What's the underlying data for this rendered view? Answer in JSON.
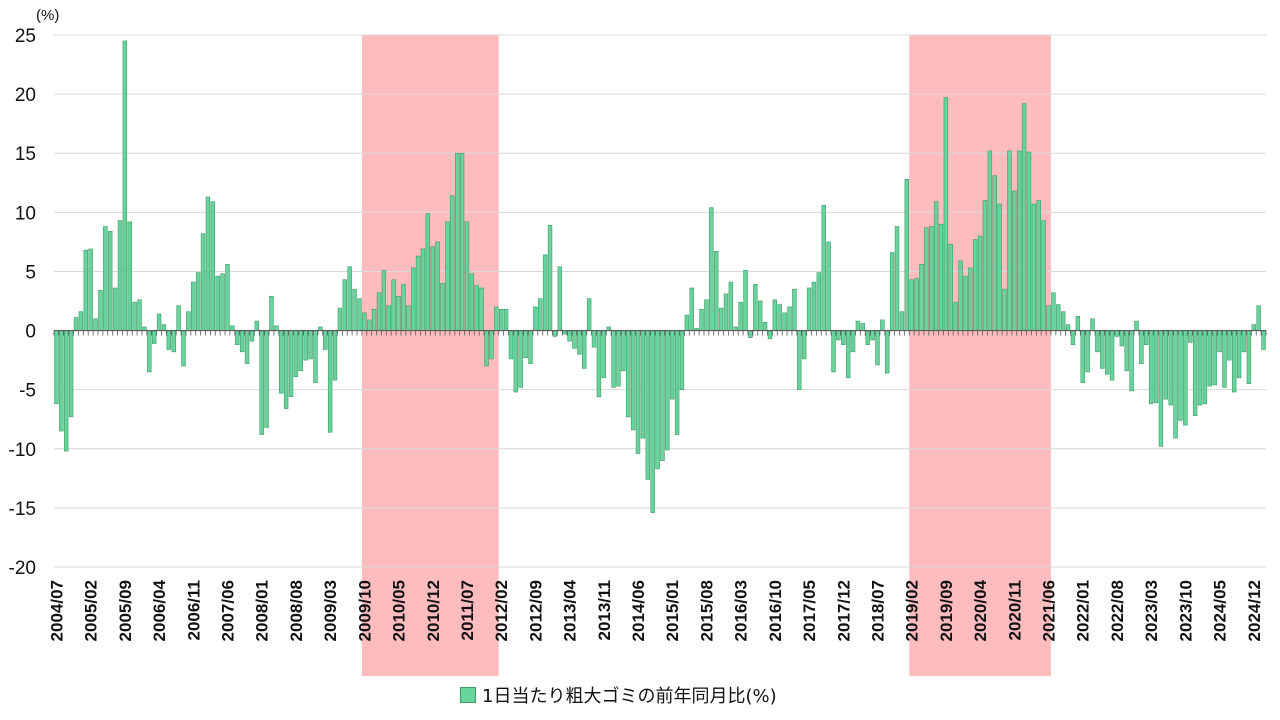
{
  "chart_data": {
    "type": "bar",
    "unit_label": "(%)",
    "colors": {
      "bar": "#69d39c",
      "bar_edge": "#3f9a6a",
      "highlight": "#ffbcbe",
      "grid": "#d9d9d9"
    },
    "ylim": [
      -20,
      25
    ],
    "y_ticks": [
      "25",
      "20",
      "15",
      "10",
      "5",
      "0",
      "-5",
      "-10",
      "-15",
      "-20"
    ],
    "x_tick_labels": [
      "2004/07",
      "2005/02",
      "2005/09",
      "2006/04",
      "2006/11",
      "2007/06",
      "2008/01",
      "2008/08",
      "2009/03",
      "2009/10",
      "2010/05",
      "2010/12",
      "2011/07",
      "2012/02",
      "2012/09",
      "2013/04",
      "2013/11",
      "2014/06",
      "2015/01",
      "2015/08",
      "2016/03",
      "2016/10",
      "2017/05",
      "2017/12",
      "2018/07",
      "2019/02",
      "2019/09",
      "2020/04",
      "2020/11",
      "2021/06",
      "2022/01",
      "2022/08",
      "2023/03",
      "2023/10",
      "2024/05",
      "2024/12"
    ],
    "shaded_periods": [
      {
        "start": "2009/10",
        "end": "2012/01"
      },
      {
        "start": "2019/02",
        "end": "2021/06"
      }
    ],
    "series": [
      {
        "name": "1日当たり粗大ゴミの前年同月比(%)",
        "start": "2004/07",
        "values": [
          -6.2,
          -8.5,
          -10.2,
          -7.3,
          1.1,
          1.6,
          6.8,
          6.9,
          1.0,
          3.4,
          8.8,
          8.4,
          3.6,
          9.3,
          24.5,
          9.2,
          2.4,
          2.6,
          0.3,
          -3.5,
          -1.1,
          1.4,
          0.5,
          -1.6,
          -1.8,
          2.1,
          -3.0,
          1.6,
          4.1,
          4.9,
          8.2,
          11.3,
          10.9,
          4.6,
          4.8,
          5.6,
          0.4,
          -1.2,
          -1.8,
          -2.8,
          -0.9,
          0.8,
          -8.8,
          -8.2,
          2.9,
          0.4,
          -5.3,
          -6.6,
          -5.6,
          -3.9,
          -3.4,
          -2.5,
          -2.4,
          -4.4,
          0.3,
          -1.6,
          -8.6,
          -4.2,
          1.9,
          4.3,
          5.4,
          3.5,
          2.7,
          1.5,
          0.9,
          1.8,
          3.2,
          5.1,
          2.1,
          4.3,
          2.9,
          3.9,
          2.1,
          5.3,
          6.3,
          6.9,
          9.9,
          7.1,
          7.5,
          4.0,
          9.2,
          11.4,
          15.0,
          15.0,
          9.2,
          4.8,
          3.8,
          3.6,
          -3.0,
          -2.4,
          2.0,
          1.8,
          1.8,
          -2.4,
          -5.2,
          -4.8,
          -2.3,
          -2.8,
          2.0,
          2.7,
          6.4,
          8.9,
          -0.5,
          5.4,
          -0.3,
          -0.9,
          -1.5,
          -2.0,
          -3.2,
          2.7,
          -1.4,
          -5.6,
          -4.0,
          0.3,
          -4.8,
          -4.7,
          -3.4,
          -7.3,
          -8.4,
          -10.4,
          -9.1,
          -12.6,
          -15.4,
          -11.7,
          -11.0,
          -10.1,
          -5.8,
          -8.8,
          -5.0,
          1.3,
          3.6,
          0.2,
          1.8,
          2.6,
          10.4,
          6.7,
          1.9,
          3.1,
          4.1,
          0.3,
          2.4,
          5.1,
          -0.6,
          3.9,
          2.5,
          0.7,
          -0.7,
          2.6,
          2.2,
          1.5,
          2.0,
          3.5,
          -5.0,
          -2.4,
          3.6,
          4.1,
          4.9,
          10.6,
          7.5,
          -3.5,
          -0.8,
          -1.2,
          -4.0,
          -1.8,
          0.8,
          0.6,
          -1.2,
          -0.8,
          -2.9,
          0.9,
          -3.6,
          6.6,
          8.8,
          1.6,
          12.8,
          4.3,
          4.4,
          5.6,
          8.7,
          8.8,
          10.9,
          9.0,
          19.7,
          7.3,
          2.4,
          5.9,
          4.6,
          5.3,
          7.7,
          8.0,
          11.0,
          15.2,
          13.1,
          10.7,
          3.5,
          15.2,
          11.8,
          15.2,
          19.2,
          15.1,
          10.7,
          11.0,
          9.3,
          2.1,
          3.2,
          2.2,
          1.6,
          0.5,
          -1.2,
          1.2,
          -4.4,
          -3.5,
          1.0,
          -1.8,
          -3.2,
          -3.7,
          -4.2,
          -0.5,
          -1.3,
          -3.4,
          -5.1,
          0.8,
          -2.8,
          -1.2,
          -6.2,
          -6.1,
          -9.8,
          -5.8,
          -6.3,
          -9.1,
          -7.6,
          -8.0,
          -1.0,
          -7.2,
          -6.3,
          -6.2,
          -4.7,
          -4.6,
          -1.8,
          -4.8,
          -2.5,
          -5.2,
          -4.0,
          -1.8,
          -4.5,
          0.5,
          2.1,
          -1.6
        ]
      }
    ]
  }
}
